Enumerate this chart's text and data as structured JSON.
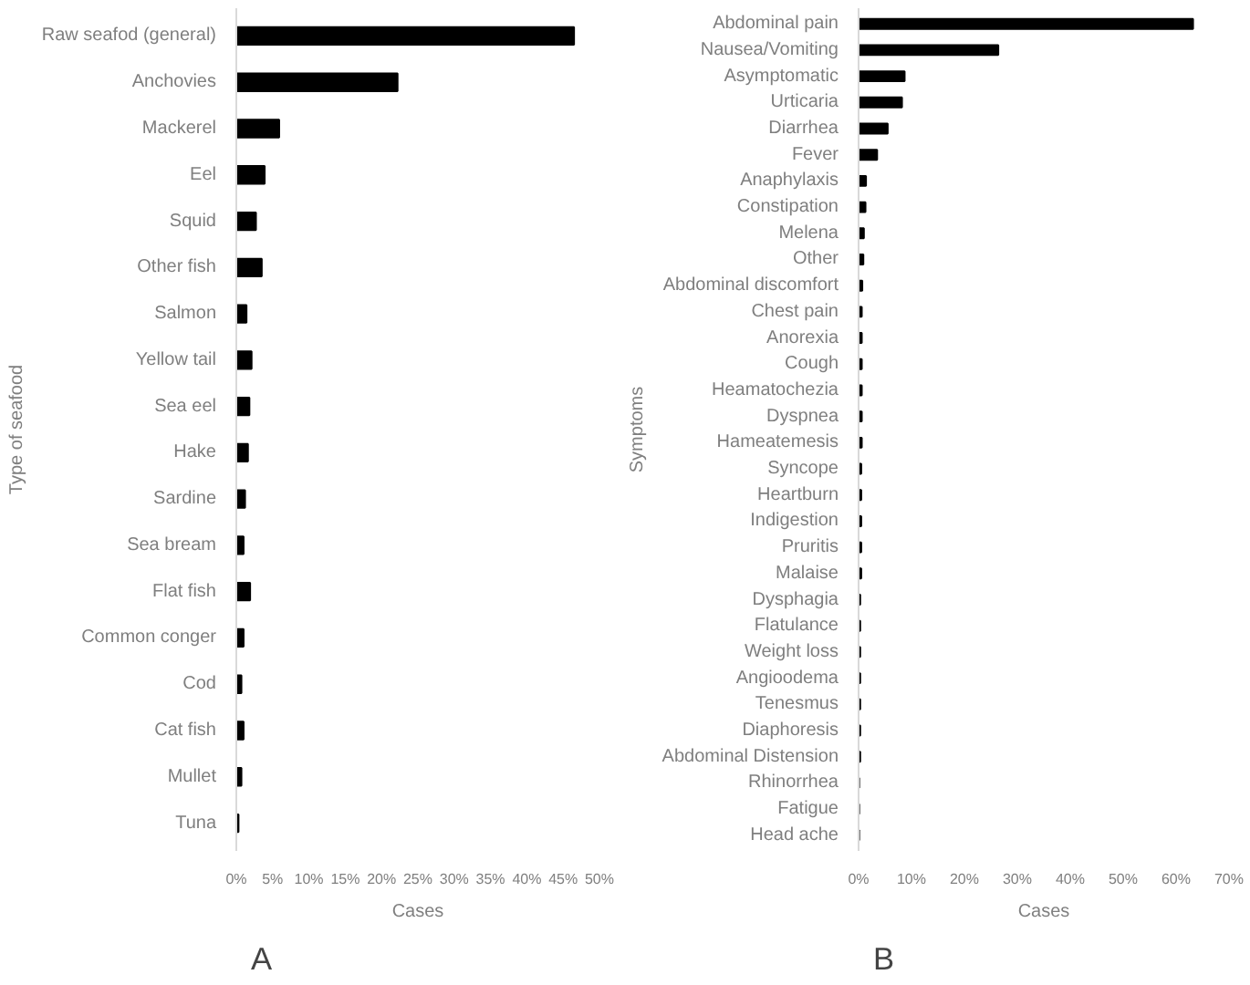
{
  "chart_data": [
    {
      "type": "bar",
      "orientation": "horizontal",
      "xlabel": "Cases",
      "ylabel": "Type of seafood",
      "annotations": [
        "A"
      ],
      "color": "#000000",
      "grid": false,
      "categories": [
        "Raw seafod (general)",
        "Anchovies",
        "Mackerel",
        "Eel",
        "Squid",
        "Other fish",
        "Salmon",
        "Yellow tail",
        "Sea eel",
        "Hake",
        "Sardine",
        "Sea bream",
        "Flat fish",
        "Common conger",
        "Cod",
        "Cat fish",
        "Mullet",
        "Tuna"
      ],
      "values": [
        46.5,
        22.2,
        5.9,
        3.9,
        2.7,
        3.5,
        1.4,
        2.1,
        1.8,
        1.6,
        1.2,
        1.0,
        1.9,
        1.0,
        0.7,
        1.0,
        0.7,
        0.3
      ],
      "xlim": [
        0,
        50
      ],
      "xticks": [
        {
          "value": 0,
          "label": "0%"
        },
        {
          "value": 5,
          "label": "5%"
        },
        {
          "value": 10,
          "label": "10%"
        },
        {
          "value": 15,
          "label": "15%"
        },
        {
          "value": 20,
          "label": "20%"
        },
        {
          "value": 25,
          "label": "25%"
        },
        {
          "value": 30,
          "label": "30%"
        },
        {
          "value": 35,
          "label": "35%"
        },
        {
          "value": 40,
          "label": "40%"
        },
        {
          "value": 45,
          "label": "45%"
        },
        {
          "value": 50,
          "label": "50%"
        }
      ]
    },
    {
      "type": "bar",
      "orientation": "horizontal",
      "xlabel": "Cases",
      "ylabel": "Symptoms",
      "annotations": [
        "B"
      ],
      "color": "#000000",
      "grid": false,
      "categories": [
        "Abdominal pain",
        "Nausea/Vomiting",
        "Asymptomatic",
        "Urticaria",
        "Diarrhea",
        "Fever",
        "Anaphylaxis",
        "Constipation",
        "Melena",
        "Other",
        "Abdominal discomfort",
        "Chest pain",
        "Anorexia",
        "Cough",
        "Heamatochezia",
        "Dyspnea",
        "Hameatemesis",
        "Syncope",
        "Heartburn",
        "Indigestion",
        "Pruritis",
        "Malaise",
        "Dysphagia",
        "Flatulance",
        "Weight loss",
        "Angioodema",
        "Tenesmus",
        "Diaphoresis",
        "Abdominal Distension",
        "Rhinorrhea",
        "Fatigue",
        "Head ache"
      ],
      "values": [
        63.2,
        26.4,
        8.7,
        8.2,
        5.5,
        3.5,
        1.4,
        1.3,
        1.0,
        0.9,
        0.7,
        0.6,
        0.6,
        0.6,
        0.6,
        0.6,
        0.6,
        0.5,
        0.5,
        0.5,
        0.5,
        0.5,
        0.3,
        0.3,
        0.3,
        0.3,
        0.3,
        0.3,
        0.3,
        0.1,
        0.1,
        0.1
      ],
      "xlim": [
        0,
        70
      ],
      "xticks": [
        {
          "value": 0,
          "label": "0%"
        },
        {
          "value": 10,
          "label": "10%"
        },
        {
          "value": 20,
          "label": "20%"
        },
        {
          "value": 30,
          "label": "30%"
        },
        {
          "value": 40,
          "label": "40%"
        },
        {
          "value": 50,
          "label": "50%"
        },
        {
          "value": 60,
          "label": "60%"
        },
        {
          "value": 70,
          "label": "70%"
        }
      ]
    }
  ]
}
